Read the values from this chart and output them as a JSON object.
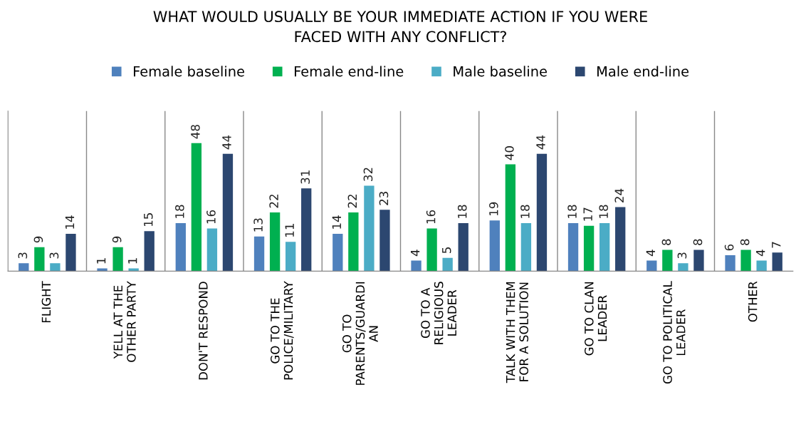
{
  "chart_data": {
    "type": "bar",
    "title": "WHAT WOULD USUALLY BE YOUR IMMEDIATE ACTION IF YOU WERE\nFACED WITH ANY CONFLICT?",
    "categories": [
      "FLIGHT",
      "YELL AT THE\nOTHER PARTY",
      "DON'T RESPOND",
      "GO TO THE\nPOLICE/MILITARY",
      "GO TO\nPARENTS/GUARDI\nAN",
      "GO TO A\nRELIGIOUS\nLEADER",
      "TALK WITH THEM\nFOR A SOLUTION",
      "GO TO CLAN\nLEADER",
      "GO TO POLITICAL\nLEADER",
      "OTHER"
    ],
    "series": [
      {
        "name": "Female baseline",
        "color": "#4f81bd",
        "values": [
          3,
          1,
          18,
          13,
          14,
          4,
          19,
          18,
          4,
          6
        ]
      },
      {
        "name": "Female end-line",
        "color": "#00b050",
        "values": [
          9,
          9,
          48,
          22,
          22,
          16,
          40,
          17,
          8,
          8
        ]
      },
      {
        "name": "Male baseline",
        "color": "#4bacc6",
        "values": [
          3,
          1,
          16,
          11,
          32,
          5,
          18,
          18,
          3,
          4
        ]
      },
      {
        "name": "Male end-line",
        "color": "#2c4770",
        "values": [
          14,
          15,
          44,
          31,
          23,
          18,
          44,
          24,
          8,
          7
        ]
      }
    ],
    "data_labels": true,
    "grid": "x",
    "legend": "top"
  }
}
